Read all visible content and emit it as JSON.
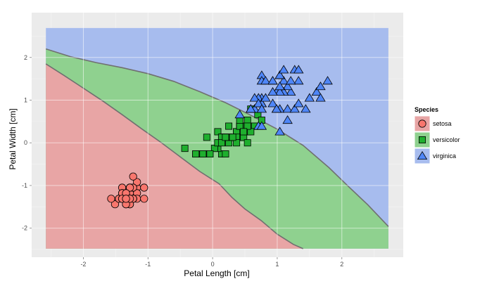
{
  "chart_data": {
    "type": "scatter",
    "xlabel": "Petal Length [cm]",
    "ylabel": "Petal Width [cm]",
    "xlim": [
      -2.8,
      2.95
    ],
    "ylim": [
      -2.68,
      3.05
    ],
    "x_ticks": [
      -2,
      -1,
      0,
      1,
      2
    ],
    "y_ticks": [
      -2,
      -1,
      0,
      1,
      2
    ],
    "x_tick_labels": [
      "-2",
      "-1",
      "0",
      "1",
      "2"
    ],
    "y_tick_labels": [
      "-2",
      "-1",
      "0",
      "1",
      "2"
    ],
    "grid": true,
    "legend": {
      "title": "Species",
      "position": "right",
      "entries": [
        "setosa",
        "versicolor",
        "virginica"
      ]
    },
    "colors": {
      "panel_bg": "#ebebeb",
      "grid": "#ffffff",
      "setosa_region": "#e8a5a5",
      "versicolor_region": "#8fd18f",
      "virginica_region": "#a7bcee",
      "setosa_point": "#f8766d",
      "versicolor_point": "#1faf2e",
      "virginica_point": "#4f86f7",
      "boundary": "#707070"
    },
    "regions": {
      "extent": [
        -2.58,
        2.72,
        -2.48,
        2.69
      ],
      "boundary_setosa_versicolor": [
        [
          -2.58,
          1.85
        ],
        [
          -2.3,
          1.58
        ],
        [
          -2.0,
          1.28
        ],
        [
          -1.7,
          0.98
        ],
        [
          -1.4,
          0.66
        ],
        [
          -1.1,
          0.33
        ],
        [
          -0.8,
          0.01
        ],
        [
          -0.5,
          -0.33
        ],
        [
          -0.2,
          -0.67
        ],
        [
          0.1,
          -0.96
        ],
        [
          0.3,
          -1.28
        ],
        [
          0.5,
          -1.55
        ],
        [
          0.75,
          -1.82
        ],
        [
          1.0,
          -2.14
        ],
        [
          1.25,
          -2.38
        ],
        [
          1.4,
          -2.48
        ]
      ],
      "boundary_versicolor_virginica": [
        [
          -2.58,
          2.2
        ],
        [
          -2.2,
          2.02
        ],
        [
          -1.8,
          1.88
        ],
        [
          -1.4,
          1.76
        ],
        [
          -1.0,
          1.62
        ],
        [
          -0.6,
          1.44
        ],
        [
          -0.2,
          1.2
        ],
        [
          0.2,
          0.94
        ],
        [
          0.6,
          0.64
        ],
        [
          1.0,
          0.32
        ],
        [
          1.4,
          -0.06
        ],
        [
          1.8,
          -0.58
        ],
        [
          2.1,
          -1.02
        ],
        [
          2.4,
          -1.45
        ],
        [
          2.72,
          -1.96
        ]
      ]
    },
    "series": [
      {
        "name": "setosa",
        "shape": "circle",
        "points": [
          [
            -1.34,
            -1.31
          ],
          [
            -1.34,
            -1.31
          ],
          [
            -1.4,
            -1.31
          ],
          [
            -1.28,
            -1.31
          ],
          [
            -1.34,
            -1.31
          ],
          [
            -1.17,
            -1.05
          ],
          [
            -1.34,
            -1.18
          ],
          [
            -1.28,
            -1.31
          ],
          [
            -1.34,
            -1.31
          ],
          [
            -1.28,
            -1.44
          ],
          [
            -1.28,
            -1.31
          ],
          [
            -1.23,
            -1.31
          ],
          [
            -1.34,
            -1.44
          ],
          [
            -1.51,
            -1.44
          ],
          [
            -1.45,
            -1.31
          ],
          [
            -1.28,
            -1.05
          ],
          [
            -1.4,
            -1.05
          ],
          [
            -1.34,
            -1.18
          ],
          [
            -1.17,
            -1.18
          ],
          [
            -1.28,
            -1.18
          ],
          [
            -1.17,
            -1.31
          ],
          [
            -1.28,
            -1.05
          ],
          [
            -1.57,
            -1.31
          ],
          [
            -1.17,
            -0.92
          ],
          [
            -1.06,
            -1.31
          ],
          [
            -1.23,
            -1.31
          ],
          [
            -1.23,
            -1.05
          ],
          [
            -1.28,
            -1.31
          ],
          [
            -1.34,
            -1.31
          ],
          [
            -1.23,
            -1.31
          ],
          [
            -1.23,
            -1.31
          ],
          [
            -1.28,
            -1.05
          ],
          [
            -1.28,
            -1.44
          ],
          [
            -1.34,
            -1.31
          ],
          [
            -1.28,
            -1.31
          ],
          [
            -1.45,
            -1.31
          ],
          [
            -1.4,
            -1.31
          ],
          [
            -1.34,
            -1.44
          ],
          [
            -1.4,
            -1.31
          ],
          [
            -1.28,
            -1.31
          ],
          [
            -1.4,
            -1.18
          ],
          [
            -1.4,
            -1.18
          ],
          [
            -1.4,
            -1.31
          ],
          [
            -1.23,
            -0.79
          ],
          [
            -1.06,
            -1.05
          ],
          [
            -1.34,
            -1.18
          ],
          [
            -1.23,
            -1.31
          ],
          [
            -1.34,
            -1.31
          ],
          [
            -1.28,
            -1.31
          ],
          [
            -1.34,
            -1.31
          ]
        ]
      },
      {
        "name": "versicolor",
        "shape": "square",
        "points": [
          [
            0.54,
            0.26
          ],
          [
            0.42,
            0.39
          ],
          [
            0.65,
            0.39
          ],
          [
            0.14,
            0.13
          ],
          [
            0.48,
            0.39
          ],
          [
            0.42,
            0.13
          ],
          [
            0.54,
            0.53
          ],
          [
            -0.26,
            -0.26
          ],
          [
            0.48,
            0.13
          ],
          [
            0.08,
            0.26
          ],
          [
            -0.15,
            -0.26
          ],
          [
            0.25,
            0.39
          ],
          [
            0.14,
            -0.26
          ],
          [
            0.54,
            0.26
          ],
          [
            -0.09,
            0.13
          ],
          [
            0.37,
            0.26
          ],
          [
            0.42,
            0.39
          ],
          [
            0.2,
            -0.26
          ],
          [
            0.42,
            0.39
          ],
          [
            0.08,
            -0.13
          ],
          [
            0.59,
            0.79
          ],
          [
            0.14,
            0.13
          ],
          [
            0.65,
            0.39
          ],
          [
            0.54,
            -0.0
          ],
          [
            0.31,
            0.13
          ],
          [
            0.37,
            0.26
          ],
          [
            0.59,
            0.26
          ],
          [
            0.7,
            0.66
          ],
          [
            0.42,
            0.39
          ],
          [
            -0.15,
            -0.26
          ],
          [
            0.03,
            -0.13
          ],
          [
            -0.04,
            -0.26
          ],
          [
            0.08,
            -0.0
          ],
          [
            0.76,
            0.53
          ],
          [
            0.42,
            0.39
          ],
          [
            0.42,
            0.53
          ],
          [
            0.54,
            0.39
          ],
          [
            0.37,
            0.13
          ],
          [
            0.2,
            0.13
          ],
          [
            0.14,
            0.13
          ],
          [
            0.37,
            -0.0
          ],
          [
            0.48,
            0.26
          ],
          [
            0.14,
            -0.0
          ],
          [
            -0.26,
            -0.26
          ],
          [
            0.25,
            0.13
          ],
          [
            0.25,
            -0.0
          ],
          [
            0.25,
            0.13
          ],
          [
            0.31,
            0.13
          ],
          [
            -0.43,
            -0.13
          ],
          [
            0.2,
            0.13
          ]
        ]
      },
      {
        "name": "virginica",
        "shape": "triangle",
        "points": [
          [
            1.27,
            1.71
          ],
          [
            0.76,
            0.92
          ],
          [
            1.21,
            1.19
          ],
          [
            1.04,
            0.79
          ],
          [
            1.16,
            1.32
          ],
          [
            1.61,
            1.19
          ],
          [
            0.42,
            0.66
          ],
          [
            1.44,
            0.79
          ],
          [
            1.16,
            0.79
          ],
          [
            1.33,
            1.71
          ],
          [
            0.76,
            1.05
          ],
          [
            0.93,
            0.92
          ],
          [
            0.99,
            1.19
          ],
          [
            0.71,
            1.05
          ],
          [
            0.76,
            1.58
          ],
          [
            0.93,
            1.45
          ],
          [
            0.99,
            0.79
          ],
          [
            1.67,
            1.32
          ],
          [
            1.78,
            1.45
          ],
          [
            0.71,
            0.39
          ],
          [
            1.1,
            1.45
          ],
          [
            0.65,
            1.05
          ],
          [
            1.67,
            1.05
          ],
          [
            0.65,
            0.79
          ],
          [
            1.1,
            1.19
          ],
          [
            1.27,
            0.79
          ],
          [
            0.59,
            0.79
          ],
          [
            0.65,
            0.79
          ],
          [
            1.04,
            1.19
          ],
          [
            1.16,
            0.53
          ],
          [
            1.33,
            0.92
          ],
          [
            1.5,
            1.05
          ],
          [
            1.04,
            1.32
          ],
          [
            0.76,
            0.39
          ],
          [
            1.04,
            0.26
          ],
          [
            1.33,
            1.45
          ],
          [
            1.04,
            1.58
          ],
          [
            0.99,
            0.79
          ],
          [
            0.59,
            0.79
          ],
          [
            0.93,
            1.19
          ],
          [
            1.04,
            1.58
          ],
          [
            0.76,
            1.45
          ],
          [
            0.76,
            0.92
          ],
          [
            1.21,
            1.45
          ],
          [
            1.1,
            1.71
          ],
          [
            0.82,
            1.45
          ],
          [
            0.71,
            0.92
          ],
          [
            0.82,
            1.05
          ],
          [
            0.93,
            1.45
          ],
          [
            0.76,
            0.79
          ]
        ]
      }
    ]
  }
}
